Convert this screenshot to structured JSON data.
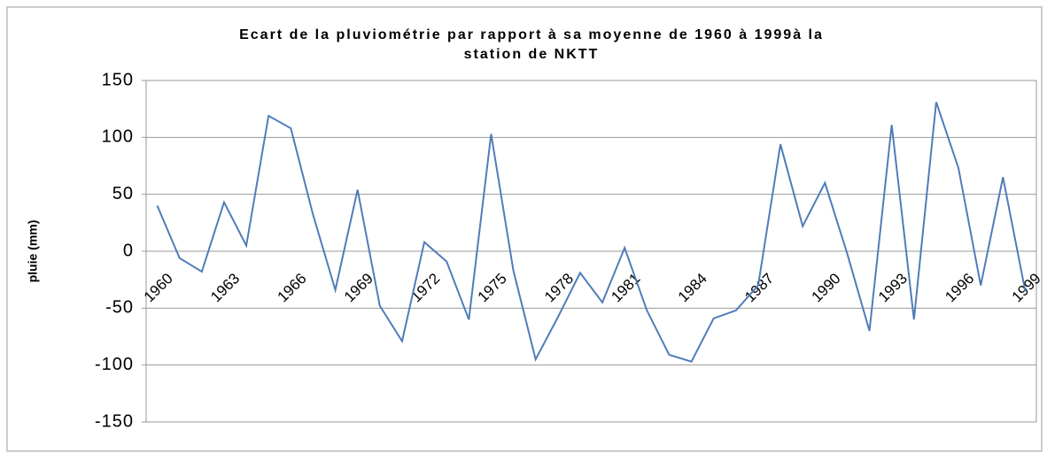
{
  "chart_data": {
    "type": "line",
    "title": [
      "Ecart de la  pluviométrie par rapport à sa moyenne de 1960 à 1999à la",
      "station de NKTT"
    ],
    "y_label": "pluie (mm)",
    "categories": [
      "1960",
      null,
      null,
      "1963",
      null,
      null,
      "1966",
      null,
      null,
      "1969",
      null,
      null,
      "1972",
      null,
      null,
      "1975",
      null,
      null,
      "1978",
      null,
      null,
      "1981",
      null,
      null,
      "1984",
      null,
      null,
      "1987",
      null,
      null,
      "1990",
      null,
      null,
      "1993",
      null,
      null,
      "1996",
      null,
      null,
      "1999"
    ],
    "series": [
      {
        "name": "pluie",
        "color": "#4f7db8",
        "values": [
          40,
          -6,
          -18,
          43,
          5,
          119,
          108,
          32,
          -34,
          54,
          -48,
          -79,
          8,
          -9,
          -60,
          103,
          -17,
          -95,
          -58,
          -19,
          -45,
          3,
          -52,
          -91,
          -97,
          -59,
          -52,
          -30,
          94,
          22,
          60,
          -2,
          -70,
          111,
          -60,
          131,
          73,
          -30,
          65,
          -35
        ]
      }
    ],
    "ylim": [
      -150,
      150
    ],
    "yticks": [
      150,
      100,
      50,
      0,
      -50,
      -100,
      -150
    ],
    "grid": true
  }
}
